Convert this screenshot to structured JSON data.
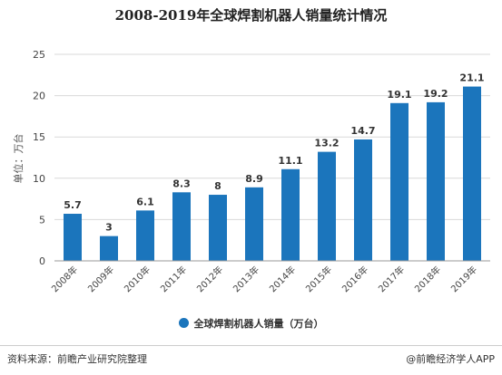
{
  "title": "2008-2019年全球焊割机器人销量统计情况",
  "colors": {
    "bar": "#1b75bc",
    "grid": "#d9d9d9",
    "axis": "#999999"
  },
  "chart_data": {
    "type": "bar",
    "title": "2008-2019年全球焊割机器人销量统计情况",
    "categories": [
      "2008年",
      "2009年",
      "2010年",
      "2011年",
      "2012年",
      "2013年",
      "2014年",
      "2015年",
      "2016年",
      "2017年",
      "2018年",
      "2019年"
    ],
    "series": [
      {
        "name": "全球焊割机器人销量（万台）",
        "values": [
          5.7,
          3,
          6.1,
          8.3,
          8,
          8.9,
          11.1,
          13.2,
          14.7,
          19.1,
          19.2,
          21.1
        ]
      }
    ],
    "ylabel": "单位：万台",
    "ylim": [
      0,
      25
    ],
    "yticks": [
      0,
      5,
      10,
      15,
      20,
      25
    ],
    "grid": true,
    "legend": "bottom"
  },
  "legend": {
    "label": "全球焊割机器人销量（万台）"
  },
  "footer": {
    "source": "资料来源：前瞻产业研究院整理",
    "credit": "@前瞻经济学人APP"
  }
}
